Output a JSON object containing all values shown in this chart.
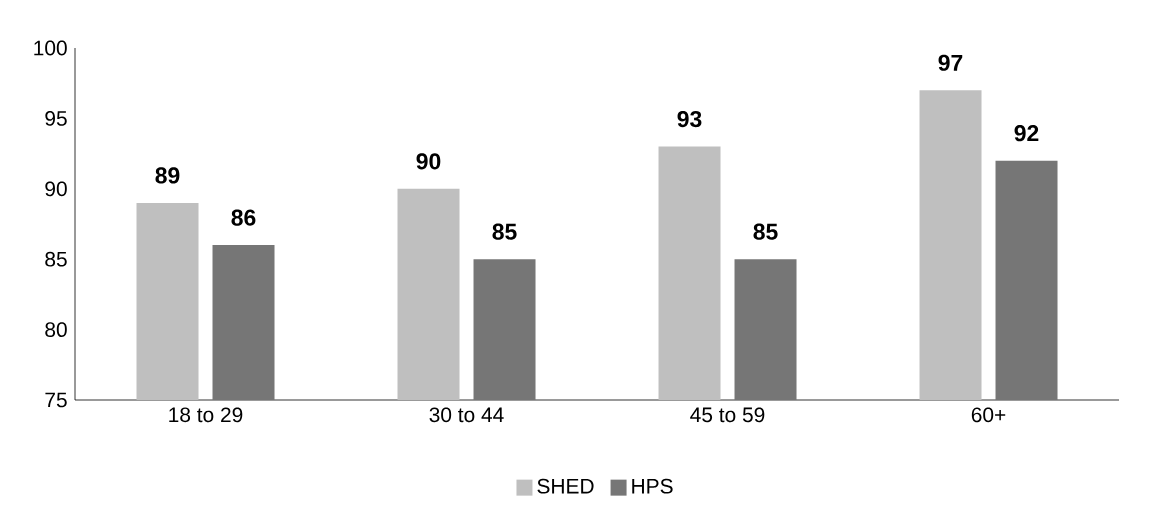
{
  "chart_data": {
    "type": "bar",
    "categories": [
      "18 to 29",
      "30 to 44",
      "45 to 59",
      "60+"
    ],
    "series": [
      {
        "name": "SHED",
        "color": "#bfbfbf",
        "values": [
          89,
          90,
          93,
          97
        ]
      },
      {
        "name": "HPS",
        "color": "#767676",
        "values": [
          86,
          85,
          85,
          92
        ]
      }
    ],
    "ylim": [
      75,
      100
    ],
    "yticks": [
      75,
      80,
      85,
      90,
      95,
      100
    ],
    "data_labels": true,
    "legend": "bottom",
    "grid": false
  }
}
